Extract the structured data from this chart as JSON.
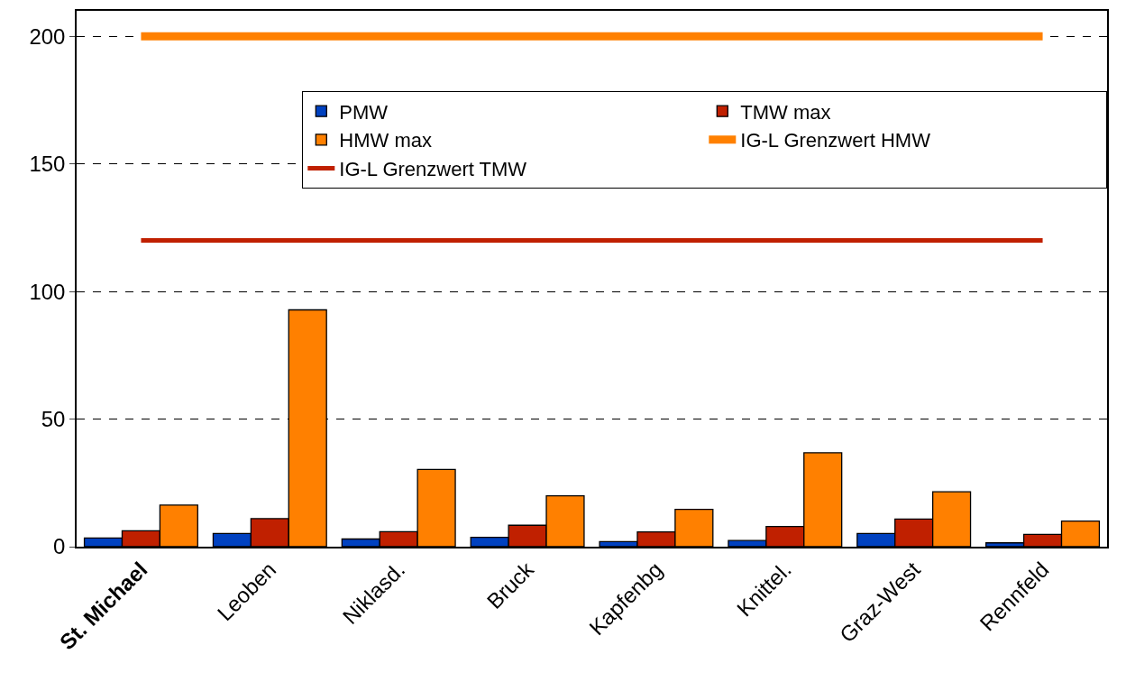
{
  "chart_data": {
    "type": "bar",
    "categories": [
      "St. Michael",
      "Leoben",
      "Niklasd.",
      "Bruck",
      "Kapfenbg",
      "Knittel.",
      "Graz-West",
      "Rennfeld"
    ],
    "series": [
      {
        "name": "PMW",
        "color": "#0041c0",
        "values": [
          3.4,
          5.2,
          3.0,
          3.7,
          2.0,
          2.4,
          5.2,
          1.5
        ]
      },
      {
        "name": "TMW max",
        "color": "#c02000",
        "values": [
          6.2,
          11.0,
          5.9,
          8.4,
          5.8,
          7.9,
          10.8,
          4.8
        ]
      },
      {
        "name": "HMW max",
        "color": "#ff8000",
        "values": [
          16.3,
          92.8,
          30.3,
          19.9,
          14.6,
          36.8,
          21.5,
          10.0
        ]
      },
      {
        "name": "IG-L Grenzwert HMW",
        "type": "line",
        "color": "#ff8000",
        "values": [
          200,
          200,
          200,
          200,
          200,
          200,
          200,
          200
        ]
      },
      {
        "name": "IG-L Grenzwert TMW",
        "type": "line",
        "color": "#c02000",
        "values": [
          120,
          120,
          120,
          120,
          120,
          120,
          120,
          120
        ]
      }
    ],
    "ylim": [
      0,
      210
    ],
    "yticks": [
      0,
      50,
      100,
      150,
      200
    ],
    "grid": "y",
    "legend": "top right",
    "line_style": "solid",
    "marker": "none"
  }
}
